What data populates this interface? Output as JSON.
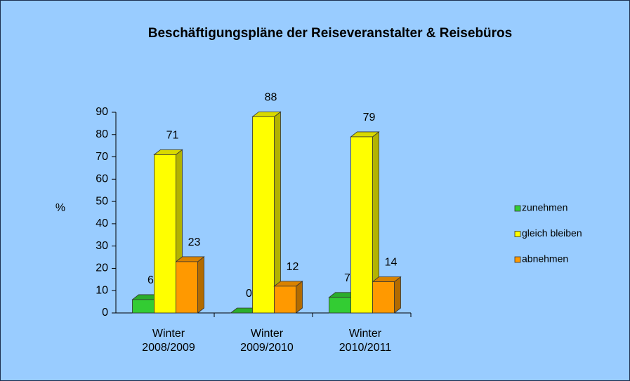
{
  "chart_data": {
    "type": "bar3d",
    "title": "Beschäftigungspläne  der Reiseveranstalter & Reisebüros",
    "y_label": "%",
    "categories": [
      [
        "Winter",
        "2008/2009"
      ],
      [
        "Winter",
        "2009/2010"
      ],
      [
        "Winter",
        "2010/2011"
      ]
    ],
    "series": [
      {
        "name": "zunehmen",
        "color": "#33cc33",
        "values": [
          6,
          0,
          7
        ]
      },
      {
        "name": "gleich bleiben",
        "color": "#ffff00",
        "values": [
          71,
          88,
          79
        ]
      },
      {
        "name": "abnehmen",
        "color": "#ff9900",
        "values": [
          23,
          12,
          14
        ]
      }
    ],
    "ylim": [
      0,
      90
    ],
    "yticks": [
      0,
      10,
      20,
      30,
      40,
      50,
      60,
      70,
      80,
      90
    ],
    "legend": "right"
  }
}
